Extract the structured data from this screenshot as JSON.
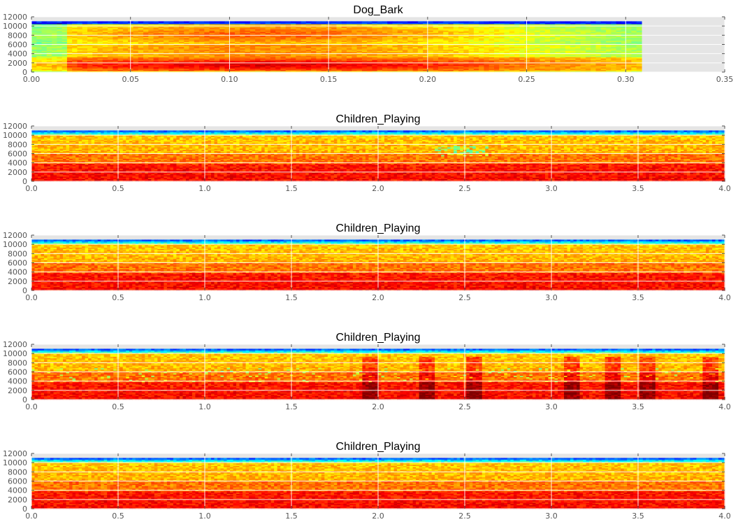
{
  "chart_data": [
    {
      "type": "heatmap",
      "title": "Dog_Bark",
      "xlabel": "",
      "ylabel": "",
      "xlim": [
        0,
        0.35
      ],
      "ylim": [
        0,
        12000
      ],
      "data_xmax": 0.308,
      "data_ymax": 11025,
      "xticks": [
        "0.00",
        "0.05",
        "0.10",
        "0.15",
        "0.20",
        "0.25",
        "0.30",
        "0.35"
      ],
      "yticks": [
        "0",
        "2000",
        "4000",
        "6000",
        "8000",
        "10000",
        "12000"
      ],
      "grid": true,
      "colormap": "jet",
      "profile": "dog"
    },
    {
      "type": "heatmap",
      "title": "Children_Playing",
      "xlabel": "",
      "ylabel": "",
      "xlim": [
        0,
        4.0
      ],
      "ylim": [
        0,
        12000
      ],
      "data_xmax": 4.0,
      "data_ymax": 11025,
      "xticks": [
        "0.0",
        "0.5",
        "1.0",
        "1.5",
        "2.0",
        "2.5",
        "3.0",
        "3.5",
        "4.0"
      ],
      "yticks": [
        "0",
        "2000",
        "4000",
        "6000",
        "8000",
        "10000",
        "12000"
      ],
      "grid": true,
      "colormap": "jet",
      "profile": "children1"
    },
    {
      "type": "heatmap",
      "title": "Children_Playing",
      "xlabel": "",
      "ylabel": "",
      "xlim": [
        0,
        4.0
      ],
      "ylim": [
        0,
        12000
      ],
      "data_xmax": 4.0,
      "data_ymax": 11025,
      "xticks": [
        "0.0",
        "0.5",
        "1.0",
        "1.5",
        "2.0",
        "2.5",
        "3.0",
        "3.5",
        "4.0"
      ],
      "yticks": [
        "0",
        "2000",
        "4000",
        "6000",
        "8000",
        "10000",
        "12000"
      ],
      "grid": true,
      "colormap": "jet",
      "profile": "children2"
    },
    {
      "type": "heatmap",
      "title": "Children_Playing",
      "xlabel": "",
      "ylabel": "",
      "xlim": [
        0,
        4.0
      ],
      "ylim": [
        0,
        12000
      ],
      "data_xmax": 4.0,
      "data_ymax": 11025,
      "xticks": [
        "0.0",
        "0.5",
        "1.0",
        "1.5",
        "2.0",
        "2.5",
        "3.0",
        "3.5",
        "4.0"
      ],
      "yticks": [
        "0",
        "2000",
        "4000",
        "6000",
        "8000",
        "10000",
        "12000"
      ],
      "grid": true,
      "colormap": "jet",
      "profile": "children3"
    },
    {
      "type": "heatmap",
      "title": "Children_Playing",
      "xlabel": "",
      "ylabel": "",
      "xlim": [
        0,
        4.0
      ],
      "ylim": [
        0,
        12000
      ],
      "data_xmax": 4.0,
      "data_ymax": 11025,
      "xticks": [
        "0.0",
        "0.5",
        "1.0",
        "1.5",
        "2.0",
        "2.5",
        "3.0",
        "3.5",
        "4.0"
      ],
      "yticks": [
        "0",
        "2000",
        "4000",
        "6000",
        "8000",
        "10000",
        "12000"
      ],
      "grid": true,
      "colormap": "jet",
      "profile": "children4"
    }
  ],
  "colors": {
    "axes_background": "#e5e5e5",
    "grid": "#ffffff",
    "tick_label": "#555555",
    "title": "#000000"
  }
}
